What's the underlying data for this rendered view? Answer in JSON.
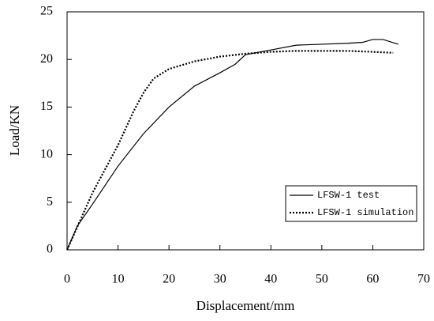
{
  "chart_data": {
    "type": "line",
    "x_label": "Displacement/mm",
    "y_label": "Load/KN",
    "xlim": [
      0,
      70
    ],
    "xticks": [
      0,
      10,
      20,
      30,
      40,
      50,
      60,
      70
    ],
    "ylim": [
      0,
      25
    ],
    "yticks": [
      0,
      5,
      10,
      15,
      20,
      25
    ],
    "series": [
      {
        "name": "LFSW-1 test",
        "color": "#000000",
        "dash": "solid",
        "x": [
          0,
          2,
          5,
          10,
          15,
          20,
          25,
          30,
          33,
          35,
          40,
          45,
          50,
          55,
          58,
          60,
          62,
          65
        ],
        "values": [
          0,
          2.5,
          4.8,
          8.8,
          12.2,
          15,
          17.2,
          18.6,
          19.5,
          20.5,
          21,
          21.5,
          21.6,
          21.7,
          21.8,
          22.1,
          22.1,
          21.6
        ]
      },
      {
        "name": "LFSW-1 simulation",
        "color": "#000000",
        "dash": "dotted",
        "x": [
          0,
          5,
          10,
          13,
          15,
          17,
          20,
          25,
          30,
          35,
          40,
          45,
          50,
          55,
          60,
          64
        ],
        "values": [
          0,
          6,
          11,
          14.5,
          16.5,
          18,
          19,
          19.8,
          20.3,
          20.6,
          20.8,
          20.9,
          20.9,
          20.9,
          20.8,
          20.7
        ]
      }
    ]
  }
}
